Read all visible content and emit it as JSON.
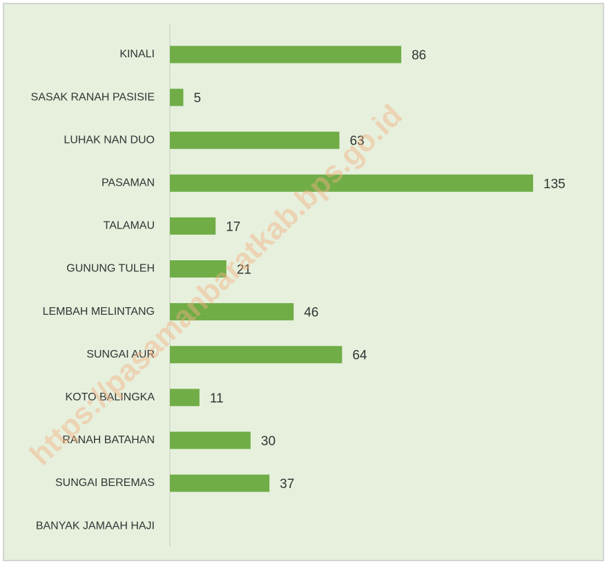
{
  "chart_data": {
    "type": "bar",
    "orientation": "horizontal",
    "categories": [
      "KINALI",
      "SASAK RANAH PASISIE",
      "LUHAK NAN DUO",
      "PASAMAN",
      "TALAMAU",
      "GUNUNG TULEH",
      "LEMBAH MELINTANG",
      "SUNGAI AUR",
      "KOTO BALINGKA",
      "RANAH BATAHAN",
      "SUNGAI BEREMAS",
      "BANYAK JAMAAH HAJI"
    ],
    "values": [
      86,
      5,
      63,
      135,
      17,
      21,
      46,
      64,
      11,
      30,
      37,
      null
    ],
    "color": "#70ad47",
    "watermark": "https://pasamanbaratkab.bps.go.id"
  }
}
